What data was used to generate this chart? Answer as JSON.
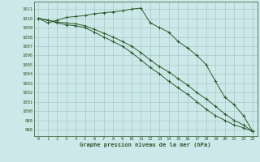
{
  "x": [
    0,
    1,
    2,
    3,
    4,
    5,
    6,
    7,
    8,
    9,
    10,
    11,
    12,
    13,
    14,
    15,
    16,
    17,
    18,
    19,
    20,
    21,
    22,
    23
  ],
  "line1": [
    1010.0,
    1009.5,
    1009.8,
    1010.1,
    1010.2,
    1010.3,
    1010.5,
    1010.6,
    1010.7,
    1010.8,
    1011.0,
    1011.1,
    1009.5,
    1009.0,
    1008.5,
    1007.5,
    1006.8,
    1006.0,
    1005.0,
    1003.2,
    1001.5,
    1000.7,
    999.5,
    997.8
  ],
  "line2": [
    1010.0,
    1009.8,
    1009.6,
    1009.5,
    1009.4,
    1009.2,
    1008.8,
    1008.4,
    1008.0,
    1007.5,
    1007.0,
    1006.3,
    1005.5,
    1004.8,
    1004.2,
    1003.5,
    1002.8,
    1002.0,
    1001.3,
    1000.5,
    999.7,
    999.0,
    998.5,
    997.8
  ],
  "line3": [
    1010.0,
    1009.8,
    1009.5,
    1009.3,
    1009.2,
    1009.0,
    1008.5,
    1008.0,
    1007.5,
    1007.0,
    1006.3,
    1005.5,
    1004.7,
    1004.0,
    1003.2,
    1002.5,
    1001.8,
    1001.0,
    1000.2,
    999.5,
    999.0,
    998.5,
    998.2,
    997.8
  ],
  "bg_color": "#cce8e8",
  "line_color": "#2d5a2d",
  "grid_color": "#9ec4c4",
  "ylabel_values": [
    998,
    999,
    1000,
    1001,
    1002,
    1003,
    1004,
    1005,
    1006,
    1007,
    1008,
    1009,
    1010,
    1011
  ],
  "xlabel_label": "Graphe pression niveau de la mer (hPa)",
  "ylim": [
    997.3,
    1011.8
  ],
  "xlim": [
    -0.5,
    23.5
  ]
}
